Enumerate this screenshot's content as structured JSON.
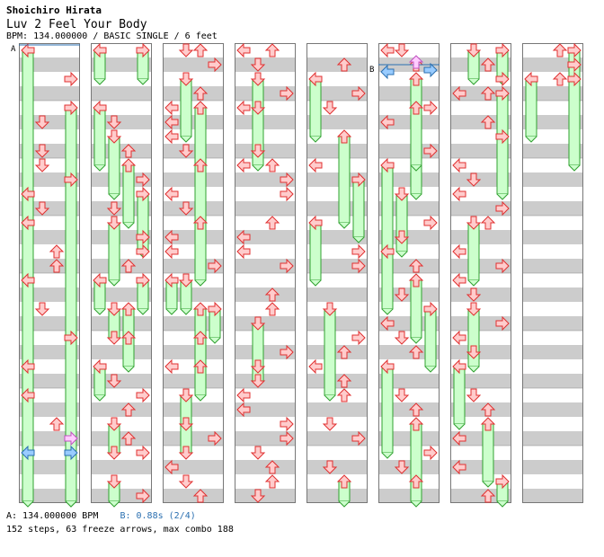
{
  "header": {
    "artist": "Shoichiro Hirata",
    "title": "Luv 2 Feel Your Body",
    "info": "BPM: 134.000000 / BASIC SINGLE / 6 feet"
  },
  "footer": {
    "bpm_text": "A: 134.000000 BPM",
    "stop_text": "B: 0.88s (2/4)",
    "stats": "152 steps, 63 freeze arrows, max combo 188"
  },
  "markers": {
    "a": "A",
    "b": "B"
  },
  "colors": {
    "stripe": "#cccccc",
    "arrow_fill": "#ffcccc",
    "arrow_stroke": "#e03030",
    "freeze_fill": "#ccffcc",
    "freeze_stroke": "#30a030",
    "arrow_blue": "#99ccff",
    "arrow_pink": "#ffccff",
    "marker_line": "#2a6fb0"
  },
  "stepchart": {
    "columns": 8,
    "lanes": [
      "left",
      "down",
      "up",
      "right"
    ],
    "beats_per_column": 32,
    "notes": [
      {
        "c": 0,
        "b": 0,
        "l": 0,
        "f": 8
      },
      {
        "c": 0,
        "b": 1,
        "l": 3
      },
      {
        "c": 0,
        "b": 2.5,
        "l": 1
      },
      {
        "c": 0,
        "b": 2,
        "l": 3,
        "f": 8
      },
      {
        "c": 0,
        "b": 3.5,
        "l": 1
      },
      {
        "c": 0,
        "b": 4,
        "l": 1
      },
      {
        "c": 0,
        "b": 4.5,
        "l": 3
      },
      {
        "c": 0,
        "b": 5,
        "l": 0
      },
      {
        "c": 0,
        "b": 5.5,
        "l": 1
      },
      {
        "c": 0,
        "b": 6,
        "l": 0,
        "f": 6
      },
      {
        "c": 0,
        "b": 7,
        "l": 2
      },
      {
        "c": 0,
        "b": 7.5,
        "l": 2
      },
      {
        "c": 0,
        "b": 8,
        "l": 0,
        "f": 6
      },
      {
        "c": 0,
        "b": 9,
        "l": 1
      },
      {
        "c": 0,
        "b": 10,
        "l": 3,
        "f": 6
      },
      {
        "c": 0,
        "b": 11,
        "l": 0
      },
      {
        "c": 0,
        "b": 12,
        "l": 0
      },
      {
        "c": 0,
        "b": 13,
        "l": 2
      },
      {
        "c": 0,
        "b": 13.5,
        "l": 3,
        "color": "pink"
      },
      {
        "c": 0,
        "b": 14,
        "l": 0,
        "f": 3,
        "color": "blue"
      },
      {
        "c": 0,
        "b": 14,
        "l": 3,
        "f": 3,
        "color": "blue"
      },
      {
        "c": 1,
        "b": 0,
        "l": 0,
        "f": 1
      },
      {
        "c": 1,
        "b": 0,
        "l": 3,
        "f": 1
      },
      {
        "c": 1,
        "b": 2,
        "l": 0,
        "f": 2
      },
      {
        "c": 1,
        "b": 2.5,
        "l": 1
      },
      {
        "c": 1,
        "b": 3,
        "l": 1,
        "f": 2
      },
      {
        "c": 1,
        "b": 3.5,
        "l": 2
      },
      {
        "c": 1,
        "b": 4,
        "l": 2,
        "f": 2
      },
      {
        "c": 1,
        "b": 4.5,
        "l": 3
      },
      {
        "c": 1,
        "b": 5,
        "l": 3,
        "f": 2
      },
      {
        "c": 1,
        "b": 5.5,
        "l": 1
      },
      {
        "c": 1,
        "b": 6,
        "l": 1,
        "f": 2
      },
      {
        "c": 1,
        "b": 6.5,
        "l": 3
      },
      {
        "c": 1,
        "b": 7,
        "l": 3
      },
      {
        "c": 1,
        "b": 7.5,
        "l": 2
      },
      {
        "c": 1,
        "b": 8,
        "l": 0,
        "f": 1
      },
      {
        "c": 1,
        "b": 8,
        "l": 3,
        "f": 1
      },
      {
        "c": 1,
        "b": 9,
        "l": 1,
        "f": 1
      },
      {
        "c": 1,
        "b": 9,
        "l": 2,
        "f": 1
      },
      {
        "c": 1,
        "b": 10,
        "l": 1
      },
      {
        "c": 1,
        "b": 10,
        "l": 2,
        "f": 1
      },
      {
        "c": 1,
        "b": 11,
        "l": 0,
        "f": 1
      },
      {
        "c": 1,
        "b": 11.5,
        "l": 1
      },
      {
        "c": 1,
        "b": 12,
        "l": 3
      },
      {
        "c": 1,
        "b": 12.5,
        "l": 2
      },
      {
        "c": 1,
        "b": 13,
        "l": 1,
        "f": 1
      },
      {
        "c": 1,
        "b": 13.5,
        "l": 2
      },
      {
        "c": 1,
        "b": 14,
        "l": 1
      },
      {
        "c": 1,
        "b": 14,
        "l": 3
      },
      {
        "c": 1,
        "b": 15,
        "l": 1,
        "f": 1
      },
      {
        "c": 1,
        "b": 15.5,
        "l": 3
      },
      {
        "c": 2,
        "b": 0,
        "l": 1
      },
      {
        "c": 2,
        "b": 0,
        "l": 2
      },
      {
        "c": 2,
        "b": 0.5,
        "l": 3
      },
      {
        "c": 2,
        "b": 1,
        "l": 1,
        "f": 2
      },
      {
        "c": 2,
        "b": 1.5,
        "l": 2
      },
      {
        "c": 2,
        "b": 2,
        "l": 0
      },
      {
        "c": 2,
        "b": 2,
        "l": 2,
        "f": 2
      },
      {
        "c": 2,
        "b": 2.5,
        "l": 0
      },
      {
        "c": 2,
        "b": 3,
        "l": 0
      },
      {
        "c": 2,
        "b": 3.5,
        "l": 1
      },
      {
        "c": 2,
        "b": 4,
        "l": 2,
        "f": 2
      },
      {
        "c": 2,
        "b": 5,
        "l": 0
      },
      {
        "c": 2,
        "b": 5.5,
        "l": 1
      },
      {
        "c": 2,
        "b": 6,
        "l": 2,
        "f": 2
      },
      {
        "c": 2,
        "b": 6.5,
        "l": 0
      },
      {
        "c": 2,
        "b": 7,
        "l": 0
      },
      {
        "c": 2,
        "b": 7.5,
        "l": 3
      },
      {
        "c": 2,
        "b": 8,
        "l": 0,
        "f": 1
      },
      {
        "c": 2,
        "b": 8,
        "l": 1,
        "f": 1
      },
      {
        "c": 2,
        "b": 9,
        "l": 2,
        "f": 1
      },
      {
        "c": 2,
        "b": 9,
        "l": 3,
        "f": 1
      },
      {
        "c": 2,
        "b": 10,
        "l": 2,
        "f": 2
      },
      {
        "c": 2,
        "b": 11,
        "l": 0
      },
      {
        "c": 2,
        "b": 11,
        "l": 2
      },
      {
        "c": 2,
        "b": 12,
        "l": 1,
        "f": 2
      },
      {
        "c": 2,
        "b": 13,
        "l": 1
      },
      {
        "c": 2,
        "b": 13.5,
        "l": 3
      },
      {
        "c": 2,
        "b": 14,
        "l": 1
      },
      {
        "c": 2,
        "b": 14.5,
        "l": 0
      },
      {
        "c": 2,
        "b": 15,
        "l": 1
      },
      {
        "c": 2,
        "b": 15.5,
        "l": 2
      },
      {
        "c": 3,
        "b": 0,
        "l": 0
      },
      {
        "c": 3,
        "b": 0,
        "l": 2
      },
      {
        "c": 3,
        "b": 0.5,
        "l": 1
      },
      {
        "c": 3,
        "b": 1,
        "l": 1,
        "f": 2
      },
      {
        "c": 3,
        "b": 1.5,
        "l": 3
      },
      {
        "c": 3,
        "b": 2,
        "l": 0
      },
      {
        "c": 3,
        "b": 2,
        "l": 1,
        "f": 2
      },
      {
        "c": 3,
        "b": 3.5,
        "l": 1
      },
      {
        "c": 3,
        "b": 4,
        "l": 0
      },
      {
        "c": 3,
        "b": 4,
        "l": 2
      },
      {
        "c": 3,
        "b": 4.5,
        "l": 3
      },
      {
        "c": 3,
        "b": 5,
        "l": 3
      },
      {
        "c": 3,
        "b": 6,
        "l": 2
      },
      {
        "c": 3,
        "b": 6.5,
        "l": 0
      },
      {
        "c": 3,
        "b": 7,
        "l": 0
      },
      {
        "c": 3,
        "b": 7.5,
        "l": 3
      },
      {
        "c": 3,
        "b": 8.5,
        "l": 2
      },
      {
        "c": 3,
        "b": 9,
        "l": 2
      },
      {
        "c": 3,
        "b": 9.5,
        "l": 1,
        "f": 2
      },
      {
        "c": 3,
        "b": 10.5,
        "l": 3
      },
      {
        "c": 3,
        "b": 11,
        "l": 1
      },
      {
        "c": 3,
        "b": 11.5,
        "l": 1
      },
      {
        "c": 3,
        "b": 12,
        "l": 0
      },
      {
        "c": 3,
        "b": 12.5,
        "l": 0
      },
      {
        "c": 3,
        "b": 13,
        "l": 3
      },
      {
        "c": 3,
        "b": 13.5,
        "l": 3
      },
      {
        "c": 3,
        "b": 14,
        "l": 1
      },
      {
        "c": 3,
        "b": 14.5,
        "l": 2
      },
      {
        "c": 3,
        "b": 15,
        "l": 2
      },
      {
        "c": 3,
        "b": 15.5,
        "l": 1
      },
      {
        "c": 4,
        "b": 0.5,
        "l": 2
      },
      {
        "c": 4,
        "b": 1,
        "l": 0,
        "f": 2
      },
      {
        "c": 4,
        "b": 1.5,
        "l": 3
      },
      {
        "c": 4,
        "b": 2,
        "l": 1
      },
      {
        "c": 4,
        "b": 3,
        "l": 2,
        "f": 3
      },
      {
        "c": 4,
        "b": 4,
        "l": 0
      },
      {
        "c": 4,
        "b": 4.5,
        "l": 3,
        "f": 2
      },
      {
        "c": 4,
        "b": 6,
        "l": 0,
        "f": 2
      },
      {
        "c": 4,
        "b": 7,
        "l": 3
      },
      {
        "c": 4,
        "b": 7.5,
        "l": 3
      },
      {
        "c": 4,
        "b": 9,
        "l": 1,
        "f": 3
      },
      {
        "c": 4,
        "b": 10,
        "l": 3
      },
      {
        "c": 4,
        "b": 10.5,
        "l": 2
      },
      {
        "c": 4,
        "b": 11,
        "l": 0
      },
      {
        "c": 4,
        "b": 11.5,
        "l": 2
      },
      {
        "c": 4,
        "b": 12,
        "l": 2
      },
      {
        "c": 4,
        "b": 13,
        "l": 1
      },
      {
        "c": 4,
        "b": 13.5,
        "l": 3
      },
      {
        "c": 4,
        "b": 14.5,
        "l": 1
      },
      {
        "c": 4,
        "b": 15,
        "l": 2,
        "f": 2
      },
      {
        "c": 5,
        "b": 0,
        "l": 0
      },
      {
        "c": 5,
        "b": 0,
        "l": 1
      },
      {
        "c": 5,
        "b": 0.5,
        "l": 2
      },
      {
        "c": 5,
        "b": 1,
        "l": 2,
        "f": 4
      },
      {
        "c": 5,
        "b": 2,
        "l": 3
      },
      {
        "c": 5,
        "b": 2.5,
        "l": 0
      },
      {
        "c": 5,
        "b": 2,
        "l": 2,
        "f": 2
      },
      {
        "c": 5,
        "b": 3.5,
        "l": 3
      },
      {
        "c": 5,
        "b": 4,
        "l": 0,
        "f": 3
      },
      {
        "c": 5,
        "b": 5,
        "l": 1,
        "f": 2
      },
      {
        "c": 5,
        "b": 6,
        "l": 3
      },
      {
        "c": 5,
        "b": 6.5,
        "l": 1
      },
      {
        "c": 5,
        "b": 7,
        "l": 0,
        "f": 2
      },
      {
        "c": 5,
        "b": 7.5,
        "l": 2
      },
      {
        "c": 5,
        "b": 8,
        "l": 2,
        "f": 2
      },
      {
        "c": 5,
        "b": 8.5,
        "l": 1
      },
      {
        "c": 5,
        "b": 9,
        "l": 3,
        "f": 2
      },
      {
        "c": 5,
        "b": 9.5,
        "l": 0
      },
      {
        "c": 5,
        "b": 10,
        "l": 1
      },
      {
        "c": 5,
        "b": 10.5,
        "l": 2
      },
      {
        "c": 5,
        "b": 11,
        "l": 0,
        "f": 3
      },
      {
        "c": 5,
        "b": 12,
        "l": 1
      },
      {
        "c": 5,
        "b": 12.5,
        "l": 2
      },
      {
        "c": 5,
        "b": 13,
        "l": 2,
        "f": 2
      },
      {
        "c": 5,
        "b": 14,
        "l": 3
      },
      {
        "c": 5,
        "b": 14.5,
        "l": 1
      },
      {
        "c": 5,
        "b": 15,
        "l": 2,
        "f": 2
      },
      {
        "c": 6,
        "b": 0,
        "l": 1,
        "f": 1
      },
      {
        "c": 6,
        "b": 0,
        "l": 3,
        "f": 1
      },
      {
        "c": 6,
        "b": 0.5,
        "l": 2
      },
      {
        "c": 6,
        "b": 1,
        "l": 3
      },
      {
        "c": 6,
        "b": 1.5,
        "l": 0
      },
      {
        "c": 6,
        "b": 1.5,
        "l": 2
      },
      {
        "c": 6,
        "b": 1.5,
        "l": 3,
        "f": 2
      },
      {
        "c": 6,
        "b": 2.5,
        "l": 2
      },
      {
        "c": 6,
        "b": 3,
        "l": 3,
        "f": 2
      },
      {
        "c": 6,
        "b": 4,
        "l": 0
      },
      {
        "c": 6,
        "b": 4.5,
        "l": 1
      },
      {
        "c": 6,
        "b": 5,
        "l": 0
      },
      {
        "c": 6,
        "b": 5.5,
        "l": 3
      },
      {
        "c": 6,
        "b": 6,
        "l": 2
      },
      {
        "c": 6,
        "b": 6,
        "l": 1,
        "f": 2
      },
      {
        "c": 6,
        "b": 7,
        "l": 0
      },
      {
        "c": 6,
        "b": 7.5,
        "l": 3
      },
      {
        "c": 6,
        "b": 8,
        "l": 0
      },
      {
        "c": 6,
        "b": 8.5,
        "l": 1
      },
      {
        "c": 6,
        "b": 9,
        "l": 1,
        "f": 2
      },
      {
        "c": 6,
        "b": 9.5,
        "l": 3
      },
      {
        "c": 6,
        "b": 10,
        "l": 0
      },
      {
        "c": 6,
        "b": 10.5,
        "l": 1
      },
      {
        "c": 6,
        "b": 11,
        "l": 0,
        "f": 2
      },
      {
        "c": 6,
        "b": 12,
        "l": 1
      },
      {
        "c": 6,
        "b": 12.5,
        "l": 2
      },
      {
        "c": 6,
        "b": 13,
        "l": 2,
        "f": 2
      },
      {
        "c": 6,
        "b": 13.5,
        "l": 0
      },
      {
        "c": 6,
        "b": 14.5,
        "l": 0
      },
      {
        "c": 6,
        "b": 15,
        "l": 3,
        "f": 2
      },
      {
        "c": 6,
        "b": 15.5,
        "l": 2
      },
      {
        "c": 7,
        "b": 0,
        "l": 2
      },
      {
        "c": 7,
        "b": 0,
        "l": 3,
        "f": 1
      },
      {
        "c": 7,
        "b": 0.5,
        "l": 3
      },
      {
        "c": 7,
        "b": 1,
        "l": 0,
        "f": 2
      },
      {
        "c": 7,
        "b": 1,
        "l": 2
      },
      {
        "c": 7,
        "b": 1,
        "l": 3,
        "f": 3
      }
    ]
  }
}
